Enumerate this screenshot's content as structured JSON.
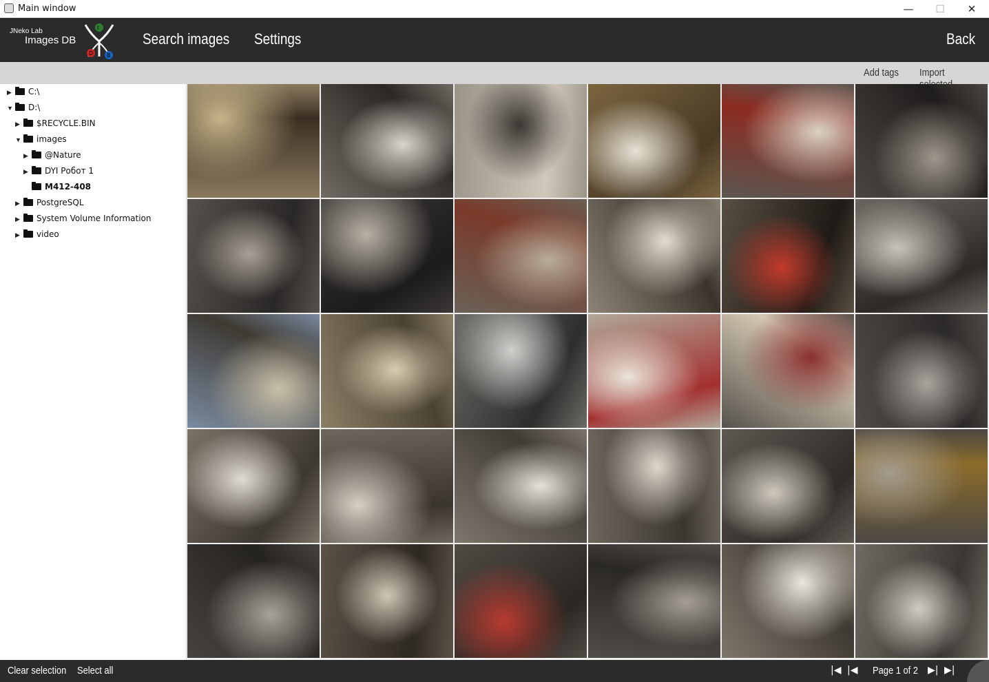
{
  "window": {
    "title": "Main window"
  },
  "header": {
    "logo_lab": "JNeko Lab",
    "logo_name": "Images DB",
    "nav": [
      "Search images",
      "Settings"
    ],
    "back": "Back"
  },
  "toolbar": {
    "add_tags": "Add tags",
    "import_selected": "Import selected"
  },
  "tree": [
    {
      "label": "C:\\",
      "expanded": false
    },
    {
      "label": "D:\\",
      "expanded": true
    },
    {
      "label": "$RECYCLE.BIN",
      "expanded": false
    },
    {
      "label": "images",
      "expanded": true
    },
    {
      "label": "@Nature",
      "expanded": false
    },
    {
      "label": "DYI Робот 1",
      "expanded": false
    },
    {
      "label": "M412-408",
      "selected": true
    },
    {
      "label": "PostgreSQL",
      "expanded": false
    },
    {
      "label": "System Volume Information",
      "expanded": false
    },
    {
      "label": "video",
      "expanded": false
    }
  ],
  "thumbnails": [
    "mirror",
    "dashboard-wires",
    "seats",
    "door-panel",
    "car-rear",
    "steering-wheel",
    "steering-gauges",
    "gauges-closeup",
    "wiring-dash",
    "interior-seat",
    "fuse-wiring",
    "floor-insulation",
    "car-front-left",
    "car-front-right",
    "grille-headlight",
    "interior-door",
    "dash-steering",
    "floor-insulation-2",
    "interior-front",
    "interior-seat-2",
    "door-frame",
    "door-interior",
    "dash-frame",
    "dash-wires",
    "dash-floor",
    "engine-bay",
    "fuse-closeup",
    "floor-wires",
    "roof-interior",
    "firewall"
  ],
  "footer": {
    "clear_selection": "Clear selection",
    "select_all": "Select all",
    "page_text": "Page 1 of 2"
  }
}
